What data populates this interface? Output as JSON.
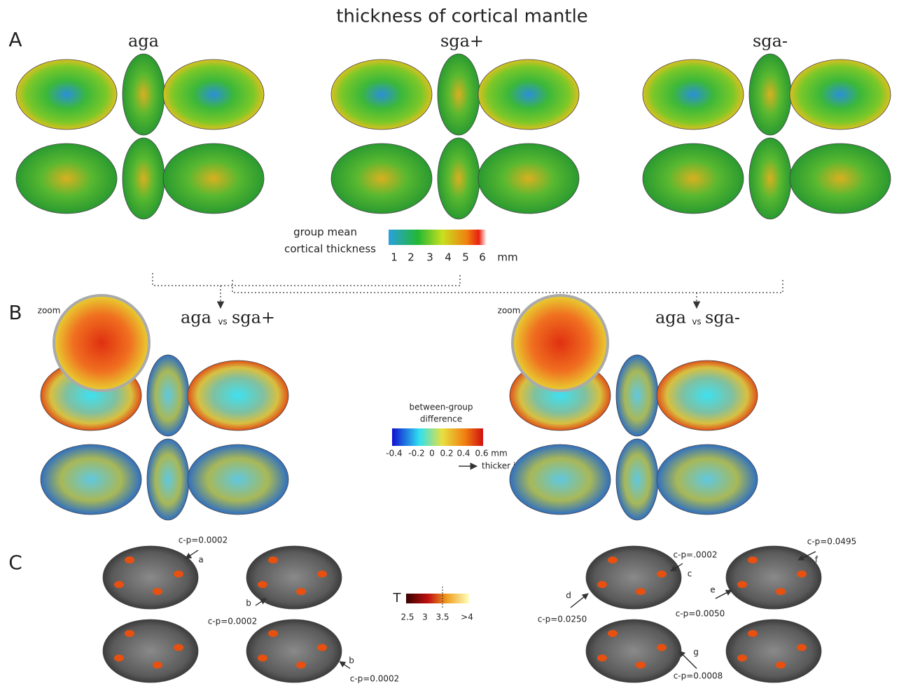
{
  "title": "thickness of cortical mantle",
  "panels": {
    "A": {
      "label": "A",
      "groups": [
        "aga",
        "sga+",
        "sga-"
      ],
      "colorbar": {
        "title_lines": [
          "group mean",
          "cortical thickness"
        ],
        "ticks": [
          "1",
          "2",
          "3",
          "4",
          "5",
          "6"
        ],
        "unit": "mm"
      }
    },
    "B": {
      "label": "B",
      "zoom": "zoom",
      "comparisons": [
        {
          "left": "aga",
          "vs": "vs",
          "right": "sga+"
        },
        {
          "left": "aga",
          "vs": "vs",
          "right": "sga-"
        }
      ],
      "colorbar": {
        "title_lines": [
          "between-group",
          "difference"
        ],
        "ticks": [
          "-0.4",
          "-0.2",
          "0",
          "0.2",
          "0.4",
          "0.6"
        ],
        "unit": "mm",
        "note": "thicker in SGA"
      }
    },
    "C": {
      "label": "C",
      "colorbar": {
        "title": "T",
        "ticks": [
          "2.5",
          "3",
          "3.5",
          ">4"
        ]
      },
      "annotations": [
        {
          "letter": "a",
          "p": "c-p=0.0002"
        },
        {
          "letter": "b",
          "p": "c-p=0.0002"
        },
        {
          "letter": "b",
          "p": "c-p=0.0002"
        },
        {
          "letter": "c",
          "p": "c-p=.0002"
        },
        {
          "letter": "d",
          "p": "c-p=0.0250"
        },
        {
          "letter": "e",
          "p": "c-p=0.0050"
        },
        {
          "letter": "f",
          "p": "c-p=0.0495"
        },
        {
          "letter": "g",
          "p": "c-p=0.0008"
        }
      ]
    }
  }
}
